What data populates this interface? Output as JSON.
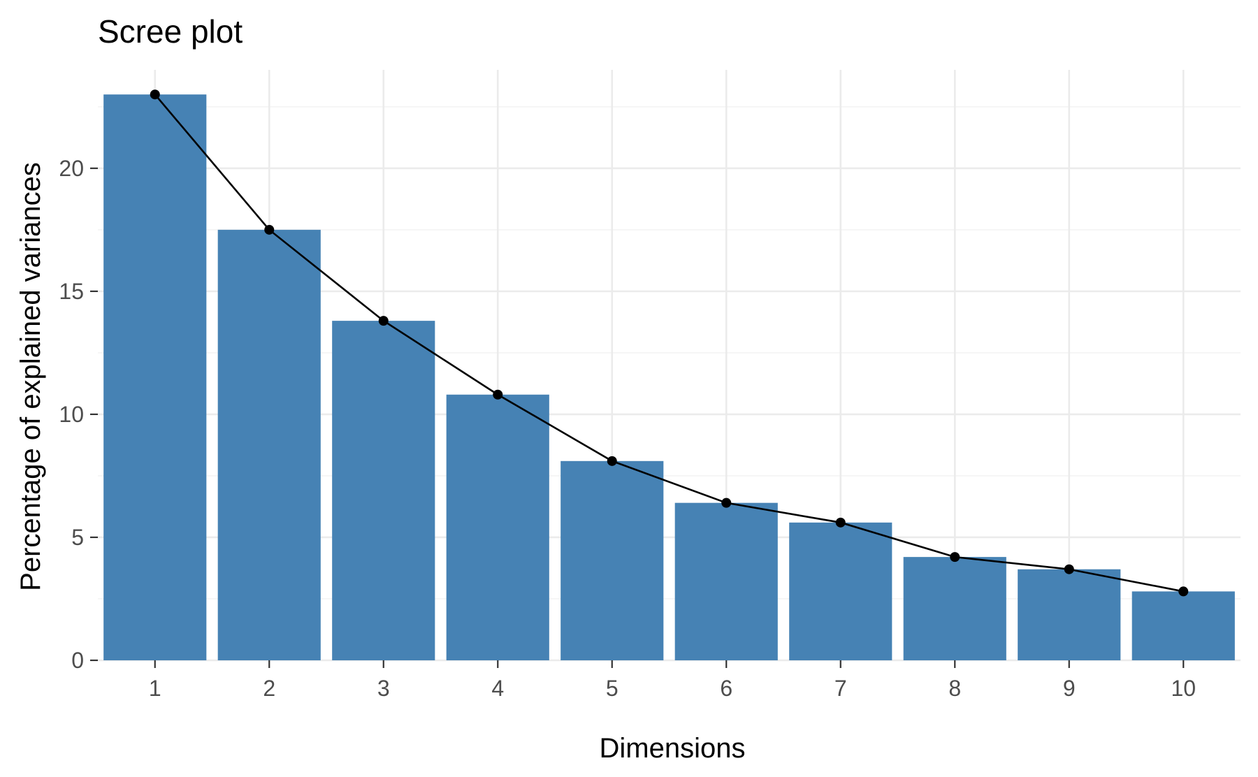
{
  "chart_data": {
    "type": "bar",
    "title": "Scree plot",
    "xlabel": "Dimensions",
    "ylabel": "Percentage of explained variances",
    "categories": [
      "1",
      "2",
      "3",
      "4",
      "5",
      "6",
      "7",
      "8",
      "9",
      "10"
    ],
    "values": [
      23.0,
      17.5,
      13.8,
      10.8,
      8.1,
      6.4,
      5.6,
      4.2,
      3.7,
      2.8
    ],
    "line_overlay": true,
    "ylim": [
      0,
      24
    ],
    "yticks": [
      0,
      5,
      10,
      15,
      20
    ],
    "grid": true,
    "legend": "none",
    "colors": {
      "bar": "#4682b4",
      "line": "#000000",
      "point": "#000000"
    }
  }
}
